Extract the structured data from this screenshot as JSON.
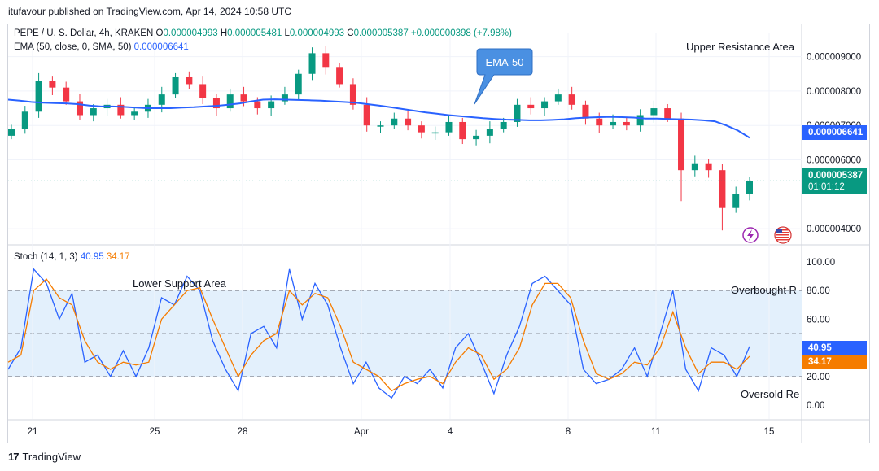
{
  "header": {
    "published_text": "itufavour published on TradingView.com, Apr 14, 2024 10:58 UTC"
  },
  "legend": {
    "symbol": "PEPE / U. S. Dollar, 4h, KRAKEN",
    "o_label": "O",
    "o_value": "0.000004993",
    "h_label": "H",
    "h_value": "0.000005481",
    "l_label": "L",
    "l_value": "0.000004993",
    "c_label": "C",
    "c_value": "0.000005387",
    "change": "+0.000000398 (+7.98%)",
    "ema_label": "EMA (50, close, 0, SMA, 50)",
    "ema_value": "0.000006641",
    "stoch_label": "Stoch (14, 1, 3)",
    "stoch_k": "40.95",
    "stoch_d": "34.17"
  },
  "annotations": {
    "callout": "EMA-50",
    "upper_resistance": "Upper Resistance Atea",
    "lower_support": "Lower Support Area",
    "overbought": "Overbought R",
    "oversold": "Oversold Re"
  },
  "price_labels": {
    "ema": "0.000006641",
    "last": "0.000005387",
    "countdown": "01:01:12",
    "stoch_k": "40.95",
    "stoch_d": "34.17"
  },
  "colors": {
    "up": "#089981",
    "down": "#f23645",
    "ema": "#2962ff",
    "stoch_k": "#2962ff",
    "stoch_d": "#f57c00",
    "band": "#e3f0fc"
  },
  "footer": {
    "brand": "TradingView"
  },
  "chart_data": [
    {
      "type": "candlestick",
      "title": "PEPE / U. S. Dollar, 4h, KRAKEN",
      "y_ticks": [
        "0.000009000",
        "0.000008000",
        "0.000007000",
        "0.000006000",
        "0.000004000"
      ],
      "ylim": [
        3.6e-06,
        9.7e-06
      ],
      "x_ticks": [
        "21",
        "25",
        "28",
        "Apr",
        "4",
        "8",
        "11",
        "15"
      ],
      "last_close": 5.387e-06,
      "ema50": [
        7.75,
        7.72,
        7.68,
        7.66,
        7.65,
        7.64,
        7.62,
        7.58,
        7.55,
        7.55,
        7.54,
        7.52,
        7.5,
        7.5,
        7.5,
        7.52,
        7.53,
        7.55,
        7.57,
        7.6,
        7.64,
        7.7,
        7.75,
        7.76,
        7.75,
        7.74,
        7.73,
        7.72,
        7.7,
        7.68,
        7.66,
        7.62,
        7.58,
        7.53,
        7.48,
        7.43,
        7.38,
        7.34,
        7.3,
        7.27,
        7.24,
        7.21,
        7.19,
        7.17,
        7.16,
        7.15,
        7.15,
        7.16,
        7.18,
        7.21,
        7.23,
        7.24,
        7.25,
        7.24,
        7.23,
        7.2,
        7.2,
        7.19,
        7.18,
        7.17,
        7.15,
        7.12,
        7.0,
        6.85,
        6.641
      ],
      "closes": [
        6.9,
        7.4,
        8.3,
        8.1,
        7.7,
        7.3,
        7.5,
        7.6,
        7.3,
        7.4,
        7.6,
        7.9,
        8.4,
        8.2,
        7.8,
        7.5,
        7.9,
        7.7,
        7.5,
        7.7,
        7.9,
        8.5,
        9.1,
        8.7,
        8.2,
        7.6,
        7.0,
        7.0,
        7.2,
        7.0,
        6.8,
        6.8,
        7.1,
        6.6,
        6.7,
        6.9,
        7.1,
        7.6,
        7.5,
        7.7,
        7.9,
        7.6,
        7.2,
        7.0,
        7.1,
        7.0,
        7.3,
        7.5,
        7.2,
        5.7,
        5.9,
        5.7,
        4.6,
        5.0,
        5.387
      ]
    },
    {
      "type": "line",
      "title": "Stoch (14, 1, 3)",
      "y_ticks": [
        "100.00",
        "80.00",
        "60.00",
        "40.00",
        "20.00",
        "0.00"
      ],
      "ylim": [
        0,
        100
      ],
      "band": [
        20,
        80
      ],
      "midline": 50,
      "x_ticks": [
        "21",
        "25",
        "28",
        "Apr",
        "4",
        "8",
        "11",
        "15"
      ],
      "series": [
        {
          "values": [
            25,
            40,
            95,
            85,
            60,
            78,
            30,
            35,
            20,
            38,
            20,
            40,
            75,
            70,
            90,
            80,
            45,
            25,
            10,
            50,
            55,
            40,
            95,
            60,
            85,
            70,
            40,
            15,
            30,
            12,
            5,
            20,
            15,
            25,
            12,
            40,
            50,
            30,
            8,
            35,
            55,
            85,
            90,
            80,
            70,
            25,
            15,
            18,
            25,
            40,
            20,
            50,
            80,
            25,
            10,
            40,
            35,
            20,
            40.95
          ]
        },
        {
          "values": [
            30,
            35,
            80,
            88,
            75,
            70,
            45,
            30,
            25,
            30,
            28,
            30,
            60,
            70,
            80,
            82,
            60,
            40,
            20,
            35,
            45,
            50,
            80,
            70,
            78,
            75,
            55,
            30,
            25,
            20,
            10,
            15,
            18,
            20,
            15,
            30,
            40,
            35,
            18,
            25,
            40,
            70,
            85,
            85,
            75,
            45,
            22,
            18,
            22,
            30,
            28,
            40,
            65,
            40,
            22,
            30,
            30,
            25,
            34.17
          ]
        }
      ]
    }
  ]
}
